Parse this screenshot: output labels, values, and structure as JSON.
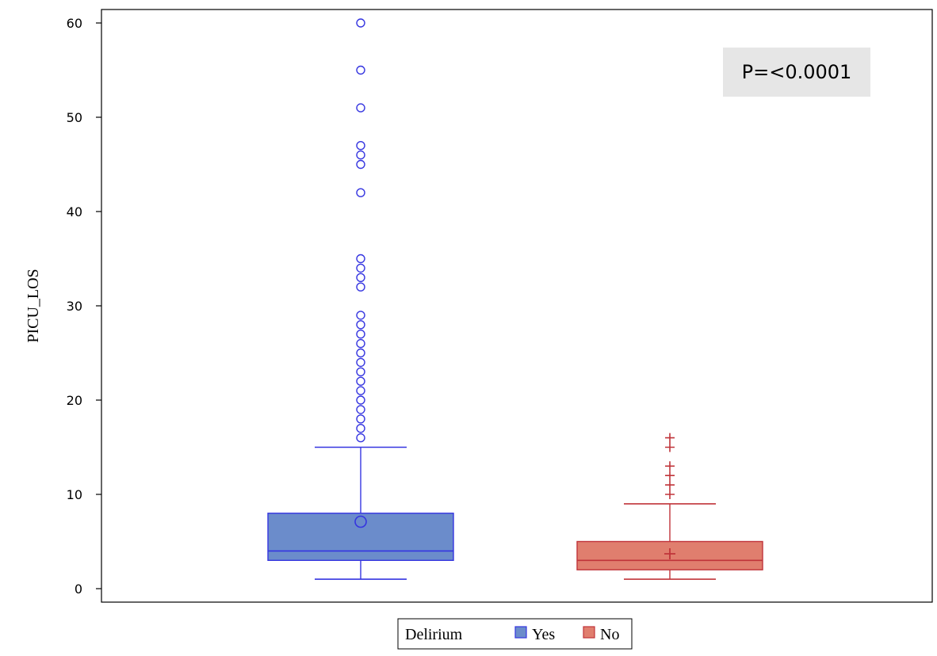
{
  "chart_data": {
    "type": "box",
    "title": "",
    "xlabel": "",
    "ylabel": "PICU_LOS",
    "ylim": [
      0,
      60
    ],
    "yticks": [
      0,
      10,
      20,
      30,
      40,
      50,
      60
    ],
    "grid": false,
    "annotation": "P=<0.0001",
    "legend": {
      "title": "Delirium",
      "position": "bottom-center",
      "entries": [
        "Yes",
        "No"
      ]
    },
    "series": [
      {
        "name": "Yes",
        "color": "#6B8CCB",
        "line_color": "#3535E0",
        "min": 1,
        "q1": 3,
        "median": 4,
        "q3": 8,
        "whisker_high": 15,
        "mean": 7.1,
        "outlier_marker": "circle",
        "outliers": [
          16,
          17,
          18,
          19,
          20,
          21,
          22,
          23,
          24,
          25,
          26,
          27,
          28,
          29,
          32,
          33,
          34,
          35,
          42,
          45,
          46,
          47,
          51,
          55,
          60
        ]
      },
      {
        "name": "No",
        "color": "#E07E6E",
        "line_color": "#C0343A",
        "min": 1,
        "q1": 2,
        "median": 3,
        "q3": 5,
        "whisker_high": 9,
        "mean": 3.7,
        "outlier_marker": "plus",
        "outliers": [
          10,
          11,
          12,
          13,
          15,
          16
        ]
      }
    ]
  }
}
